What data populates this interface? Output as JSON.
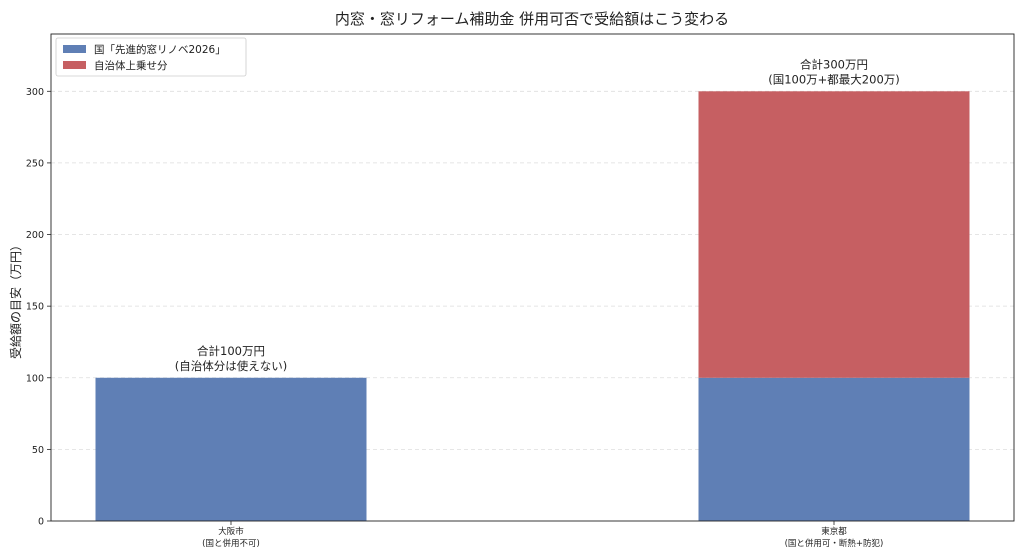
{
  "chart_data": {
    "type": "bar",
    "stacked": true,
    "title": "内窓・窓リフォーム補助金 併用可否で受給額はこう変わる",
    "xlabel": "",
    "ylabel": "受給額の目安（万円）",
    "ylim": [
      0,
      340
    ],
    "yticks": [
      0,
      50,
      100,
      150,
      200,
      250,
      300
    ],
    "grid": true,
    "legend_position": "top-left",
    "categories": [
      {
        "line1": "大阪市",
        "line2": "(国と併用不可)"
      },
      {
        "line1": "東京都",
        "line2": "(国と併用可・断熱+防犯)"
      }
    ],
    "series": [
      {
        "name": "国「先進的窓リノベ2026」",
        "color": "#5f7fb5",
        "values": [
          100,
          100
        ]
      },
      {
        "name": "自治体上乗せ分",
        "color": "#c65f62",
        "values": [
          0,
          200
        ]
      }
    ],
    "annotations": [
      {
        "line1": "合計100万円",
        "line2": "(自治体分は使えない)"
      },
      {
        "line1": "合計300万円",
        "line2": "(国100万+都最大200万)"
      }
    ]
  }
}
